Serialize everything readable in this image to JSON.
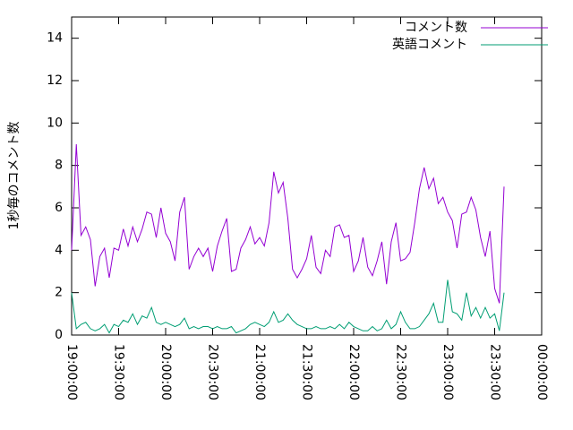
{
  "chart_data": {
    "type": "line",
    "y_label": "1秒毎のコメント数",
    "x": [
      "19:00:00",
      "19:03:00",
      "19:06:00",
      "19:09:00",
      "19:12:00",
      "19:15:00",
      "19:18:00",
      "19:21:00",
      "19:24:00",
      "19:27:00",
      "19:30:00",
      "19:33:00",
      "19:36:00",
      "19:39:00",
      "19:42:00",
      "19:45:00",
      "19:48:00",
      "19:51:00",
      "19:54:00",
      "19:57:00",
      "20:00:00",
      "20:03:00",
      "20:06:00",
      "20:09:00",
      "20:12:00",
      "20:15:00",
      "20:18:00",
      "20:21:00",
      "20:24:00",
      "20:27:00",
      "20:30:00",
      "20:33:00",
      "20:36:00",
      "20:39:00",
      "20:42:00",
      "20:45:00",
      "20:48:00",
      "20:51:00",
      "20:54:00",
      "20:57:00",
      "21:00:00",
      "21:03:00",
      "21:06:00",
      "21:09:00",
      "21:12:00",
      "21:15:00",
      "21:18:00",
      "21:21:00",
      "21:24:00",
      "21:27:00",
      "21:30:00",
      "21:33:00",
      "21:36:00",
      "21:39:00",
      "21:42:00",
      "21:45:00",
      "21:48:00",
      "21:51:00",
      "21:54:00",
      "21:57:00",
      "22:00:00",
      "22:03:00",
      "22:06:00",
      "22:09:00",
      "22:12:00",
      "22:15:00",
      "22:18:00",
      "22:21:00",
      "22:24:00",
      "22:27:00",
      "22:30:00",
      "22:33:00",
      "22:36:00",
      "22:39:00",
      "22:42:00",
      "22:45:00",
      "22:48:00",
      "22:51:00",
      "22:54:00",
      "22:57:00",
      "23:00:00",
      "23:03:00",
      "23:06:00",
      "23:09:00",
      "23:12:00",
      "23:15:00",
      "23:18:00",
      "23:21:00",
      "23:24:00",
      "23:27:00",
      "23:30:00",
      "23:33:00",
      "23:36:00"
    ],
    "series": [
      {
        "name": "コメント数",
        "color": "#9400d3",
        "values": [
          4.0,
          9.0,
          4.7,
          5.1,
          4.5,
          2.3,
          3.7,
          4.1,
          2.7,
          4.1,
          4.0,
          5.0,
          4.2,
          5.1,
          4.4,
          5.0,
          5.8,
          5.7,
          4.6,
          6.0,
          4.8,
          4.4,
          3.5,
          5.8,
          6.5,
          3.1,
          3.7,
          4.1,
          3.7,
          4.1,
          3.0,
          4.2,
          4.9,
          5.5,
          3.0,
          3.1,
          4.1,
          4.5,
          5.1,
          4.3,
          4.6,
          4.2,
          5.3,
          7.7,
          6.7,
          7.2,
          5.5,
          3.1,
          2.7,
          3.1,
          3.6,
          4.7,
          3.2,
          2.9,
          4.0,
          3.7,
          5.1,
          5.2,
          4.6,
          4.7,
          3.0,
          3.5,
          4.6,
          3.2,
          2.8,
          3.5,
          4.4,
          2.4,
          4.4,
          5.3,
          3.5,
          3.6,
          3.9,
          5.3,
          6.9,
          7.9,
          6.9,
          7.4,
          6.2,
          6.5,
          5.8,
          5.4,
          4.1,
          5.7,
          5.8,
          6.5,
          5.9,
          4.6,
          3.7,
          4.9,
          2.2,
          1.5,
          7.0
        ]
      },
      {
        "name": "英語コメント",
        "color": "#009e73",
        "values": [
          2.0,
          0.3,
          0.5,
          0.6,
          0.3,
          0.2,
          0.3,
          0.5,
          0.1,
          0.5,
          0.4,
          0.7,
          0.6,
          1.0,
          0.5,
          0.9,
          0.8,
          1.3,
          0.6,
          0.5,
          0.6,
          0.5,
          0.4,
          0.5,
          0.8,
          0.3,
          0.4,
          0.3,
          0.4,
          0.4,
          0.3,
          0.4,
          0.3,
          0.3,
          0.4,
          0.1,
          0.2,
          0.3,
          0.5,
          0.6,
          0.5,
          0.4,
          0.6,
          1.1,
          0.6,
          0.7,
          1.0,
          0.7,
          0.5,
          0.4,
          0.3,
          0.3,
          0.4,
          0.3,
          0.3,
          0.4,
          0.3,
          0.5,
          0.3,
          0.6,
          0.4,
          0.3,
          0.2,
          0.2,
          0.4,
          0.2,
          0.3,
          0.7,
          0.3,
          0.5,
          1.1,
          0.6,
          0.3,
          0.3,
          0.4,
          0.7,
          1.0,
          1.5,
          0.6,
          0.6,
          2.6,
          1.1,
          1.0,
          0.7,
          2.0,
          0.9,
          1.3,
          0.8,
          1.3,
          0.8,
          1.0,
          0.2,
          2.0
        ]
      }
    ],
    "xlim": [
      "19:00:00",
      "00:00:00"
    ],
    "xticks": [
      "19:00:00",
      "19:30:00",
      "20:00:00",
      "20:30:00",
      "21:00:00",
      "21:30:00",
      "22:00:00",
      "22:30:00",
      "23:00:00",
      "23:30:00",
      "00:00:00"
    ],
    "ylim": [
      0,
      15
    ],
    "yticks": [
      0,
      2,
      4,
      6,
      8,
      10,
      12,
      14
    ],
    "legend": "top-right"
  }
}
